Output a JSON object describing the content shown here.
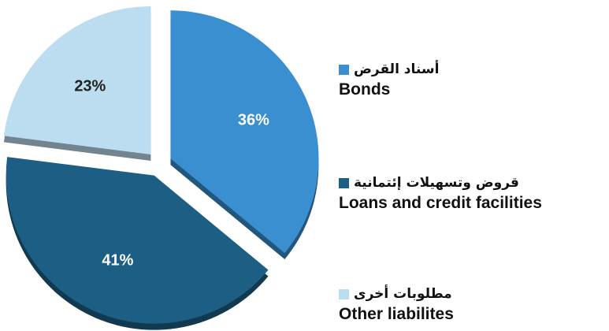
{
  "chart_data": {
    "type": "pie",
    "title": "",
    "slices": [
      {
        "label_ar": "أسناد القرض",
        "label_en": "Bonds",
        "value": 36,
        "value_label": "36%",
        "color": "#3a8fd0",
        "text_color": "#ffffff"
      },
      {
        "label_ar": "قروض وتسهيلات إئتمانية",
        "label_en": "Loans and credit facilities",
        "value": 41,
        "value_label": "41%",
        "color": "#1d5f84",
        "text_color": "#ffffff"
      },
      {
        "label_ar": "مطلوبات أخرى",
        "label_en": "Other liabilites",
        "value": 23,
        "value_label": "23%",
        "color": "#bcdcf0",
        "text_color": "#222222"
      }
    ],
    "legend_position": "right",
    "exploded": true
  }
}
